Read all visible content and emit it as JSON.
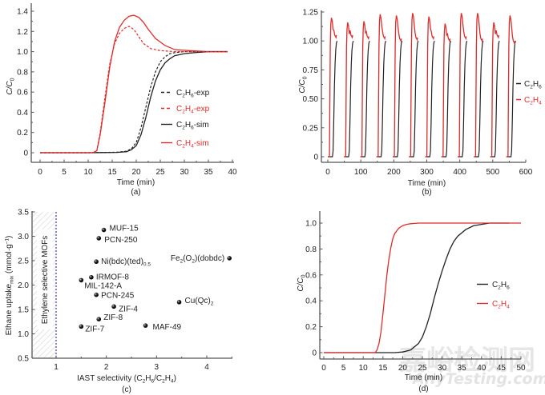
{
  "colors": {
    "c2h6": "#222222",
    "c2h4": "#e02b2b",
    "axis": "#555555",
    "divider": "#3a3acc",
    "highlight": "#e02b2b"
  },
  "watermark": {
    "cn": "嘉峪检测网",
    "en": "AnyTesting.com"
  },
  "chart_data": [
    {
      "id": "a",
      "type": "line",
      "caption": "(a)",
      "xlabel": "Time (min)",
      "ylabel": "C/C0",
      "xlim": [
        -2,
        40
      ],
      "ylim": [
        -0.09,
        1.5
      ],
      "xticks": [
        0,
        5,
        10,
        15,
        20,
        25,
        30,
        35,
        40
      ],
      "yticks": [
        0,
        0.2,
        0.4,
        0.6,
        0.8,
        1.0,
        1.2,
        1.4
      ],
      "ytick_labels": [
        "0",
        "0.2",
        "0.4",
        "0.6",
        "0.8",
        "1.0",
        "1.2",
        "1.4"
      ],
      "legend_position": "right-middle",
      "series": [
        {
          "name": "C2H6-exp",
          "label_main": "C",
          "sub1": "2",
          "mid": "H",
          "sub2": "6",
          "suffix": "-exp",
          "color_key": "c2h6",
          "style": "dashed",
          "x": [
            0,
            10,
            16,
            18,
            19,
            20,
            21,
            22,
            23,
            24,
            25,
            26,
            27,
            28,
            30,
            33,
            36,
            39
          ],
          "y": [
            0,
            0,
            0.005,
            0.015,
            0.04,
            0.1,
            0.25,
            0.45,
            0.65,
            0.8,
            0.9,
            0.95,
            0.98,
            0.99,
            1.0,
            1.0,
            1.0,
            1.0
          ]
        },
        {
          "name": "C2H4-exp",
          "label_main": "C",
          "sub1": "2",
          "mid": "H",
          "sub2": "4",
          "suffix": "-exp",
          "color_key": "c2h4",
          "style": "dashed",
          "x": [
            0,
            11,
            11.8,
            12.5,
            13.5,
            14.5,
            15.5,
            16.5,
            17.5,
            18.5,
            19.5,
            20.5,
            21.5,
            23,
            25,
            28,
            32,
            39
          ],
          "y": [
            0,
            0,
            0.02,
            0.2,
            0.55,
            0.88,
            1.08,
            1.18,
            1.23,
            1.25,
            1.22,
            1.15,
            1.08,
            1.03,
            1.01,
            1.0,
            1.0,
            1.0
          ]
        },
        {
          "name": "C2H6-sim",
          "label_main": "C",
          "sub1": "2",
          "mid": "H",
          "sub2": "6",
          "suffix": "-sim",
          "color_key": "c2h6",
          "style": "solid",
          "x": [
            0,
            10,
            16,
            18,
            19,
            20,
            21,
            22,
            23,
            24,
            25,
            26,
            27,
            28,
            30,
            32,
            35,
            39
          ],
          "y": [
            0,
            0,
            0.003,
            0.01,
            0.03,
            0.07,
            0.18,
            0.35,
            0.55,
            0.71,
            0.82,
            0.89,
            0.93,
            0.96,
            0.98,
            0.99,
            1.0,
            1.0
          ]
        },
        {
          "name": "C2H4-sim",
          "label_main": "C",
          "sub1": "2",
          "mid": "H",
          "sub2": "4",
          "suffix": "-sim",
          "color_key": "c2h4",
          "style": "solid",
          "x": [
            0,
            11,
            11.8,
            12.5,
            13.5,
            14.5,
            15.5,
            16.5,
            17.5,
            18.5,
            19.5,
            20.5,
            21.5,
            22.5,
            24,
            26,
            28,
            31,
            35,
            39
          ],
          "y": [
            0,
            0,
            0.02,
            0.18,
            0.5,
            0.85,
            1.1,
            1.24,
            1.31,
            1.35,
            1.36,
            1.34,
            1.29,
            1.22,
            1.13,
            1.06,
            1.02,
            1.01,
            1.0,
            1.0
          ]
        }
      ]
    },
    {
      "id": "b",
      "type": "line",
      "caption": "(b)",
      "xlabel": "Time (min)",
      "ylabel": "C/C0",
      "xlim": [
        -20,
        600
      ],
      "ylim": [
        -0.05,
        1.25
      ],
      "xticks": [
        0,
        100,
        200,
        300,
        400,
        500,
        600
      ],
      "yticks": [
        0,
        0.25,
        0.5,
        0.75,
        1.0,
        1.25
      ],
      "ytick_labels": [
        "0",
        "0.25",
        "0.50",
        "0.75",
        "1.00",
        "1.25"
      ],
      "legend_position": "right-middle",
      "cycle_period_min": 49.2,
      "cycle_count": 12,
      "c2h4_cycle_peaks": [
        1.2,
        1.16,
        1.17,
        1.23,
        1.22,
        1.24,
        1.21,
        1.15,
        1.24,
        1.24,
        1.16,
        1.22
      ],
      "c2h4_cycle_end": [
        1.03,
        1.03,
        1.02,
        1.02,
        1.0,
        1.01,
        1.02,
        1.0,
        1.02,
        1.0,
        1.03,
        0.98
      ],
      "series": [
        {
          "name": "C2H6",
          "label_main": "C",
          "sub1": "2",
          "mid": "H",
          "sub2": "6",
          "suffix": "",
          "color_key": "c2h6"
        },
        {
          "name": "C2H4",
          "label_main": "C",
          "sub1": "2",
          "mid": "H",
          "sub2": "4",
          "suffix": "",
          "color_key": "c2h4"
        }
      ]
    },
    {
      "id": "c",
      "type": "scatter",
      "caption": "(c)",
      "xlabel": "IAST selectivity (C2H6/C2H4)",
      "xlabel_parts": [
        "IAST selectivity (C",
        "2",
        "H",
        "6",
        "/C",
        "2",
        "H",
        "4",
        ")"
      ],
      "ylabel": "Ethane uptake_mix (mmol·g⁻¹)",
      "ylabel_main": "Ethane uptake",
      "ylabel_sub": "mix",
      "ylabel_unit": " (mmol·g",
      "ylabel_sup": "−1",
      "ylabel_close": ")",
      "xlim": [
        0.5,
        4.5
      ],
      "ylim": [
        0.5,
        3.5
      ],
      "xticks": [
        1,
        2,
        3,
        4
      ],
      "yticks": [
        0.5,
        1.0,
        1.5,
        2.0,
        2.5,
        3.0,
        3.5
      ],
      "ytick_labels": [
        "0.5",
        "1.0",
        "1.5",
        "2.0",
        "2.5",
        "3.0",
        "3.5"
      ],
      "shaded_region": {
        "x_from": 0.5,
        "x_to": 1.0,
        "label": "Ethylene selective MOFs"
      },
      "points": [
        {
          "name": "MUF-15",
          "x": 1.95,
          "y": 3.13,
          "highlight": true,
          "sub": ""
        },
        {
          "name": "PCN-250",
          "x": 1.85,
          "y": 2.96,
          "highlight": false,
          "sub": ""
        },
        {
          "name": "Ni(bdc)(ted)",
          "x": 1.8,
          "y": 2.48,
          "highlight": false,
          "sub": "0.5"
        },
        {
          "name": "Fe2(O2)(dobdc)",
          "x": 4.45,
          "y": 2.55,
          "highlight": false,
          "sub": ""
        },
        {
          "name": "IRMOF-8",
          "x": 1.7,
          "y": 2.16,
          "highlight": false,
          "sub": ""
        },
        {
          "name": "MIL-142-A",
          "x": 1.5,
          "y": 2.1,
          "highlight": false,
          "sub": ""
        },
        {
          "name": "PCN-245",
          "x": 1.8,
          "y": 1.8,
          "highlight": false,
          "sub": ""
        },
        {
          "name": "Cu(Qc)2",
          "x": 3.45,
          "y": 1.65,
          "highlight": false,
          "sub": ""
        },
        {
          "name": "ZIF-4",
          "x": 2.15,
          "y": 1.56,
          "highlight": false,
          "sub": ""
        },
        {
          "name": "ZIF-8",
          "x": 1.85,
          "y": 1.3,
          "highlight": false,
          "sub": ""
        },
        {
          "name": "MAF-49",
          "x": 2.78,
          "y": 1.17,
          "highlight": false,
          "sub": ""
        },
        {
          "name": "ZIF-7",
          "x": 1.5,
          "y": 1.15,
          "highlight": false,
          "sub": ""
        }
      ]
    },
    {
      "id": "d",
      "type": "line",
      "caption": "(d)",
      "xlabel": "Time (min)",
      "ylabel": "C/C0",
      "xlim": [
        -1,
        50
      ],
      "ylim": [
        -0.05,
        1.1
      ],
      "xticks": [
        0,
        5,
        10,
        15,
        20,
        25,
        30,
        35,
        40,
        45,
        50
      ],
      "yticks": [
        0,
        0.2,
        0.4,
        0.6,
        0.8,
        1.0
      ],
      "ytick_labels": [
        "0",
        "0.2",
        "0.4",
        "0.6",
        "0.8",
        "1.0"
      ],
      "legend_position": "right-middle",
      "series": [
        {
          "name": "C2H6",
          "label_main": "C",
          "sub1": "2",
          "mid": "H",
          "sub2": "6",
          "suffix": "",
          "color_key": "c2h6",
          "x": [
            0,
            18,
            20,
            22,
            24,
            25,
            26,
            27,
            28,
            29,
            30,
            31,
            32,
            33,
            34,
            36,
            38,
            40,
            42,
            45,
            47
          ],
          "y": [
            0,
            0,
            0.005,
            0.02,
            0.07,
            0.12,
            0.2,
            0.3,
            0.42,
            0.53,
            0.63,
            0.72,
            0.8,
            0.86,
            0.9,
            0.95,
            0.98,
            0.99,
            1.0,
            1.0,
            1.0
          ]
        },
        {
          "name": "C2H4",
          "label_main": "C",
          "sub1": "2",
          "mid": "H",
          "sub2": "4",
          "suffix": "",
          "color_key": "c2h4",
          "x": [
            0,
            13,
            13.5,
            14,
            14.5,
            15,
            15.5,
            16,
            16.5,
            17,
            17.5,
            18,
            19,
            20,
            21,
            22,
            24,
            26,
            50
          ],
          "y": [
            0,
            0,
            0.02,
            0.07,
            0.16,
            0.3,
            0.45,
            0.6,
            0.72,
            0.81,
            0.88,
            0.92,
            0.96,
            0.98,
            0.99,
            0.995,
            1.0,
            1.0,
            1.0
          ]
        }
      ]
    }
  ]
}
